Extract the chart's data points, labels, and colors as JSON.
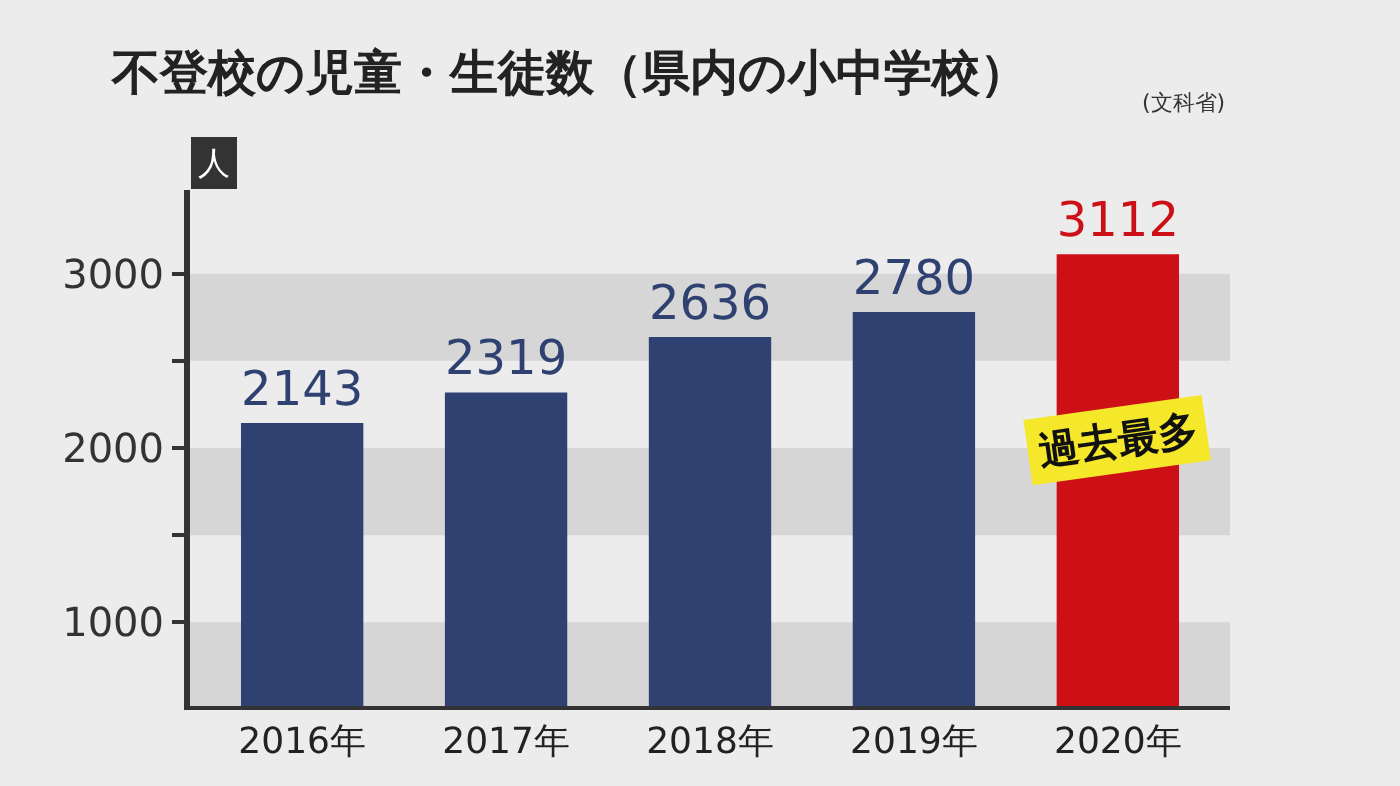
{
  "chart_data": {
    "type": "bar",
    "title": "不登校の児童・生徒数（県内の小中学校）",
    "ylabel": "人",
    "annotations": [
      "(文科省)",
      {
        "text": "過去最多",
        "x": "2020年",
        "y": 2050
      }
    ],
    "categories": [
      "2016年",
      "2017年",
      "2018年",
      "2019年",
      "2020年"
    ],
    "values": [
      2143,
      2319,
      2636,
      2780,
      3112
    ],
    "colors": [
      "#2f4170",
      "#2f4170",
      "#2f4170",
      "#2f4170",
      "#cc1016"
    ],
    "data_labels": true,
    "ylim": [
      520,
      3480
    ],
    "yticks": [
      1000,
      {
        "value": 1500,
        "label": null
      },
      2000,
      {
        "value": 2500,
        "label": null
      },
      3000
    ],
    "bands": [
      {
        "axis": "y",
        "from": 520,
        "to": 1000,
        "color": "#d6d6d6"
      },
      {
        "axis": "y",
        "from": 1500,
        "to": 2000,
        "color": "#d6d6d6"
      },
      {
        "axis": "y",
        "from": 2500,
        "to": 3000,
        "color": "#d6d6d6"
      }
    ],
    "grid": false,
    "legend": false
  }
}
